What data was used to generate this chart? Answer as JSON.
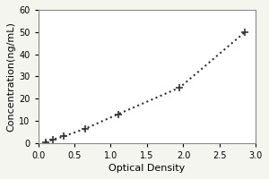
{
  "x_data": [
    0.1,
    0.2,
    0.35,
    0.65,
    1.1,
    1.95,
    2.85
  ],
  "y_data": [
    0.5,
    1.5,
    3.0,
    6.5,
    13.0,
    25.0,
    50.0
  ],
  "xlabel": "Optical Density",
  "ylabel": "Concentration(ng/mL)",
  "xlim": [
    0,
    3.0
  ],
  "ylim": [
    0,
    60
  ],
  "xticks": [
    0,
    0.5,
    1.0,
    1.5,
    2.0,
    2.5,
    3.0
  ],
  "yticks": [
    0,
    10,
    20,
    30,
    40,
    50,
    60
  ],
  "line_color": "#333333",
  "marker_style": "+",
  "marker_size": 6,
  "marker_color": "#333333",
  "line_style": ":",
  "line_width": 1.5,
  "background_color": "#f5f5f0",
  "plot_bg_color": "#ffffff",
  "border_color": "#888888",
  "tick_fontsize": 7,
  "label_fontsize": 8
}
